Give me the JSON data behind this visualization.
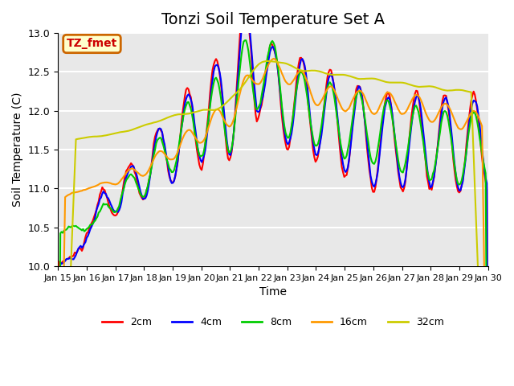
{
  "title": "Tonzi Soil Temperature Set A",
  "xlabel": "Time",
  "ylabel": "Soil Temperature (C)",
  "ylim": [
    10.0,
    13.0
  ],
  "yticks": [
    10.0,
    10.5,
    11.0,
    11.5,
    12.0,
    12.5,
    13.0
  ],
  "xtick_positions": [
    0,
    1,
    2,
    3,
    4,
    5,
    6,
    7,
    8,
    9,
    10,
    11,
    12,
    13,
    14,
    15
  ],
  "xtick_labels": [
    "Jan 15",
    "Jan 16",
    "Jan 17",
    "Jan 18",
    "Jan 19",
    "Jan 20",
    "Jan 21",
    "Jan 22",
    "Jan 23",
    "Jan 24",
    "Jan 25",
    "Jan 26",
    "Jan 27",
    "Jan 28",
    "Jan 29",
    "Jan 30"
  ],
  "legend_labels": [
    "2cm",
    "4cm",
    "8cm",
    "16cm",
    "32cm"
  ],
  "legend_colors": [
    "#ff0000",
    "#0000ff",
    "#00cc00",
    "#ff9900",
    "#cccc00"
  ],
  "annotation_text": "TZ_fmet",
  "annotation_bg": "#ffffcc",
  "annotation_border": "#cc6600",
  "annotation_text_color": "#cc0000",
  "plot_bg_color": "#e8e8e8",
  "grid_color": "#ffffff",
  "title_fontsize": 14
}
